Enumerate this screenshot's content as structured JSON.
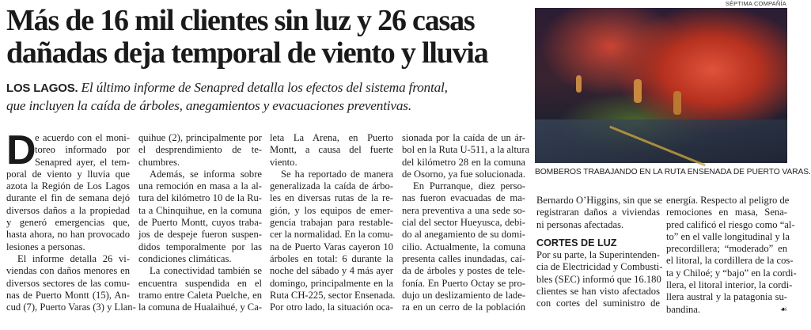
{
  "headline": [
    "Más de 16 mil clientes sin luz y 26 casas",
    "dañadas deja temporal de viento y lluvia"
  ],
  "lede": {
    "kicker": "LOS LAGOS.",
    "lines": [
      "El último informe de Senapred detalla los efectos del sistema frontal,",
      "que incluyen la caída de árboles, anegamientos y evacuaciones preventivas."
    ]
  },
  "photo": {
    "credit": "SÉPTIMA COMPAÑÍA",
    "caption": "BOMBEROS TRABAJANDO EN LA RUTA ENSENADA DE PUERTO VARAS."
  },
  "dropcap": "D",
  "columns": [
    {
      "paragraphs": [
        [
          "e acuerdo con el moni-",
          "toreo informado por",
          "Senapred ayer, el tem-",
          "poral de viento y lluvia que",
          "azota la Región de Los Lagos",
          "durante el fin de semana dejó",
          "diversos daños a la propiedad",
          "y generó emergencias que,",
          "hasta ahora, no han provocado",
          "lesiones a personas."
        ],
        [
          "El informe detalla 26 vi-",
          "viendas con daños menores en",
          "diversos sectores de las comu-",
          "nas de Puerto Montt (15), An-",
          "cud (7), Puerto Varas (3) y Llan-"
        ]
      ]
    },
    {
      "paragraphs": [
        [
          "quihue (2), principalmente por",
          "el desprendimiento de te-",
          "chumbres."
        ],
        [
          "Además, se informa sobre",
          "una remoción en masa a la al-",
          "tura del kilómetro 10 de la Ru-",
          "ta a Chinquihue, en la comuna",
          "de Puerto Montt, cuyos traba-",
          "jos de despeje fueron suspen-",
          "didos temporalmente por las",
          "condiciones climáticas."
        ],
        [
          "La conectividad también se",
          "encuentra suspendida en el",
          "tramo entre Caleta Puelche, en",
          "la comuna de Hualaihué, y Ca-"
        ]
      ]
    },
    {
      "paragraphs": [
        [
          "leta La Arena, en Puerto",
          "Montt, a causa del fuerte",
          "viento."
        ],
        [
          "Se ha reportado de manera",
          "generalizada la caída de árbo-",
          "les en diversas rutas de la re-",
          "gión, y los equipos de emer-",
          "gencia trabajan para restable-",
          "cer la normalidad. En la comu-",
          "na de Puerto Varas cayeron 10",
          "árboles en total: 6 durante la",
          "noche del sábado y 4 más ayer",
          "domingo, principalmente en la",
          "Ruta CH-225, sector Ensenada.",
          "Por otro lado, la situación oca-"
        ]
      ]
    },
    {
      "paragraphs": [
        [
          "sionada por la caída de un ár-",
          "bol en la Ruta U-511, a la altura",
          "del kilómetro 28 en la comuna",
          "de Osorno, ya fue solucionada."
        ],
        [
          "En Purranque, diez perso-",
          "nas fueron evacuadas de ma-",
          "nera preventiva a una sede so-",
          "cial del sector Hueyusca, debi-",
          "do al anegamiento de su domi-",
          "cilio. Actualmente, la comuna",
          "presenta calles inundadas, caí-",
          "da de árboles y postes de tele-",
          "fonía. En Puerto Octay se pro-",
          "dujo un deslizamiento de lade-",
          "ra en un cerro de la población"
        ]
      ]
    },
    {
      "paragraphs": [
        [
          "Bernardo O’Higgins, sin que se",
          "registraran daños a viviendas",
          "ni personas afectadas."
        ]
      ],
      "subhead": "CORTES DE LUZ",
      "after": [
        "Por su parte, la Superintenden-",
        "cia de Electricidad y Combusti-",
        "bles (SEC) informó que 16.180",
        "clientes se han visto afectados",
        "con cortes del suministro de"
      ]
    },
    {
      "paragraphs": [
        [
          "energía. Respecto al peligro de",
          "remociones en masa, Sena-",
          "pred calificó el riesgo como “al-",
          "to” en el valle longitudinal y la",
          "precordillera; “moderado” en",
          "el litoral, la cordillera de la cos-",
          "ta y Chiloé; y “bajo” en la cordi-",
          "llera, el litoral interior, la cordi-",
          "llera austral y la patagonia su-",
          "bandina."
        ]
      ]
    }
  ],
  "end_mark": "☙"
}
